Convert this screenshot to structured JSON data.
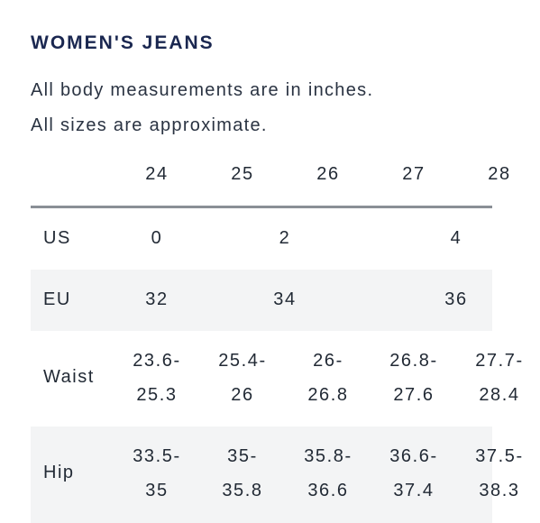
{
  "title": "WOMEN'S JEANS",
  "notes": [
    "All body measurements are in inches.",
    "All sizes are approximate."
  ],
  "size_headers": [
    "24",
    "25",
    "26",
    "27",
    "28"
  ],
  "rows": {
    "us": {
      "label": "US",
      "values": [
        "0",
        "2",
        "4"
      ]
    },
    "eu": {
      "label": "EU",
      "values": [
        "32",
        "34",
        "36"
      ]
    },
    "waist": {
      "label": "Waist",
      "values": [
        "23.6-\n25.3",
        "25.4-\n26",
        "26-\n26.8",
        "26.8-\n27.6",
        "27.7-\n28.4"
      ]
    },
    "hip": {
      "label": "Hip",
      "values": [
        "33.5-\n35",
        "35-\n35.8",
        "35.8-\n36.6",
        "36.6-\n37.4",
        "37.5-\n38.3"
      ]
    }
  }
}
